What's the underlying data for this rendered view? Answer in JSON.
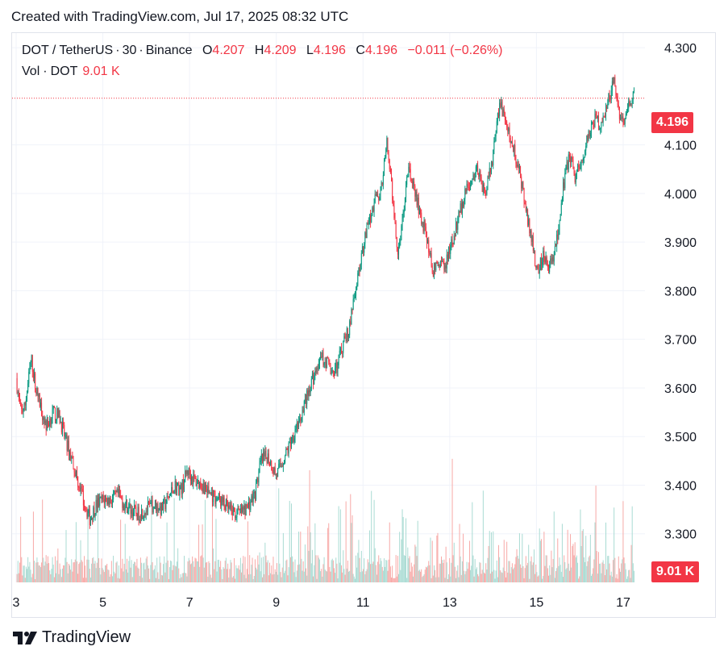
{
  "header": {
    "created": "Created with TradingView.com, Jul 17, 2025 08:32 UTC"
  },
  "legend": {
    "symbol": "DOT / TetherUS",
    "interval": "30",
    "exchange": "Binance",
    "open_label": "O",
    "open": "4.207",
    "high_label": "H",
    "high": "4.209",
    "low_label": "L",
    "low": "4.196",
    "close_label": "C",
    "close": "4.196",
    "change": "−0.011 (−0.26%)",
    "vol_label": "Vol",
    "vol_symbol": "DOT",
    "vol_value": "9.01 K"
  },
  "badges": {
    "price": "4.196",
    "volume": "9.01 K"
  },
  "footer": {
    "brand": "TradingView"
  },
  "colors": {
    "up": "#089981",
    "down": "#f23645",
    "vol_up": "#a9dbd3",
    "vol_down": "#f7a9a7",
    "grid": "#f0f3fa",
    "text": "#131722"
  },
  "chart_data": {
    "type": "candlestick",
    "ylim": [
      3.2,
      4.33
    ],
    "y_ticks": [
      "3.300",
      "3.400",
      "3.500",
      "3.600",
      "3.700",
      "3.800",
      "3.900",
      "4.000",
      "4.100",
      "4.300"
    ],
    "x_ticks": [
      {
        "label": "3",
        "day": 3
      },
      {
        "label": "5",
        "day": 5
      },
      {
        "label": "7",
        "day": 7
      },
      {
        "label": "9",
        "day": 9
      },
      {
        "label": "11",
        "day": 11
      },
      {
        "label": "13",
        "day": 13
      },
      {
        "label": "15",
        "day": 15
      },
      {
        "label": "17",
        "day": 17
      }
    ],
    "last_price": 4.196,
    "close_path": [
      [
        3.0,
        3.62
      ],
      [
        3.1,
        3.55
      ],
      [
        3.2,
        3.56
      ],
      [
        3.35,
        3.66
      ],
      [
        3.45,
        3.6
      ],
      [
        3.6,
        3.55
      ],
      [
        3.7,
        3.52
      ],
      [
        3.85,
        3.55
      ],
      [
        4.0,
        3.54
      ],
      [
        4.15,
        3.49
      ],
      [
        4.3,
        3.45
      ],
      [
        4.45,
        3.4
      ],
      [
        4.55,
        3.37
      ],
      [
        4.7,
        3.33
      ],
      [
        4.85,
        3.36
      ],
      [
        5.0,
        3.37
      ],
      [
        5.2,
        3.37
      ],
      [
        5.35,
        3.38
      ],
      [
        5.5,
        3.36
      ],
      [
        5.65,
        3.35
      ],
      [
        5.8,
        3.34
      ],
      [
        6.0,
        3.35
      ],
      [
        6.2,
        3.36
      ],
      [
        6.35,
        3.35
      ],
      [
        6.5,
        3.37
      ],
      [
        6.65,
        3.4
      ],
      [
        6.8,
        3.39
      ],
      [
        6.95,
        3.43
      ],
      [
        7.1,
        3.41
      ],
      [
        7.3,
        3.4
      ],
      [
        7.5,
        3.38
      ],
      [
        7.7,
        3.37
      ],
      [
        7.9,
        3.35
      ],
      [
        8.1,
        3.34
      ],
      [
        8.3,
        3.35
      ],
      [
        8.5,
        3.38
      ],
      [
        8.65,
        3.45
      ],
      [
        8.8,
        3.46
      ],
      [
        9.0,
        3.42
      ],
      [
        9.15,
        3.45
      ],
      [
        9.3,
        3.48
      ],
      [
        9.45,
        3.52
      ],
      [
        9.6,
        3.55
      ],
      [
        9.75,
        3.6
      ],
      [
        9.9,
        3.63
      ],
      [
        10.05,
        3.66
      ],
      [
        10.2,
        3.65
      ],
      [
        10.35,
        3.63
      ],
      [
        10.5,
        3.68
      ],
      [
        10.7,
        3.73
      ],
      [
        10.85,
        3.82
      ],
      [
        11.0,
        3.89
      ],
      [
        11.1,
        3.93
      ],
      [
        11.25,
        3.98
      ],
      [
        11.4,
        4.0
      ],
      [
        11.55,
        4.1
      ],
      [
        11.65,
        4.02
      ],
      [
        11.8,
        3.87
      ],
      [
        11.9,
        3.94
      ],
      [
        12.05,
        4.05
      ],
      [
        12.2,
        4.0
      ],
      [
        12.35,
        3.95
      ],
      [
        12.5,
        3.9
      ],
      [
        12.6,
        3.84
      ],
      [
        12.75,
        3.86
      ],
      [
        12.9,
        3.85
      ],
      [
        13.05,
        3.9
      ],
      [
        13.2,
        3.95
      ],
      [
        13.35,
        4.0
      ],
      [
        13.5,
        4.02
      ],
      [
        13.65,
        4.05
      ],
      [
        13.8,
        4.0
      ],
      [
        13.95,
        4.05
      ],
      [
        14.05,
        4.12
      ],
      [
        14.15,
        4.19
      ],
      [
        14.3,
        4.14
      ],
      [
        14.45,
        4.1
      ],
      [
        14.6,
        4.05
      ],
      [
        14.75,
        3.97
      ],
      [
        14.9,
        3.9
      ],
      [
        15.0,
        3.84
      ],
      [
        15.15,
        3.87
      ],
      [
        15.3,
        3.85
      ],
      [
        15.45,
        3.89
      ],
      [
        15.6,
        4.0
      ],
      [
        15.75,
        4.08
      ],
      [
        15.9,
        4.03
      ],
      [
        16.05,
        4.07
      ],
      [
        16.2,
        4.12
      ],
      [
        16.35,
        4.15
      ],
      [
        16.5,
        4.14
      ],
      [
        16.65,
        4.19
      ],
      [
        16.8,
        4.23
      ],
      [
        16.9,
        4.16
      ],
      [
        17.0,
        4.14
      ],
      [
        17.1,
        4.18
      ],
      [
        17.25,
        4.2
      ]
    ],
    "volume_max": 9.01
  }
}
